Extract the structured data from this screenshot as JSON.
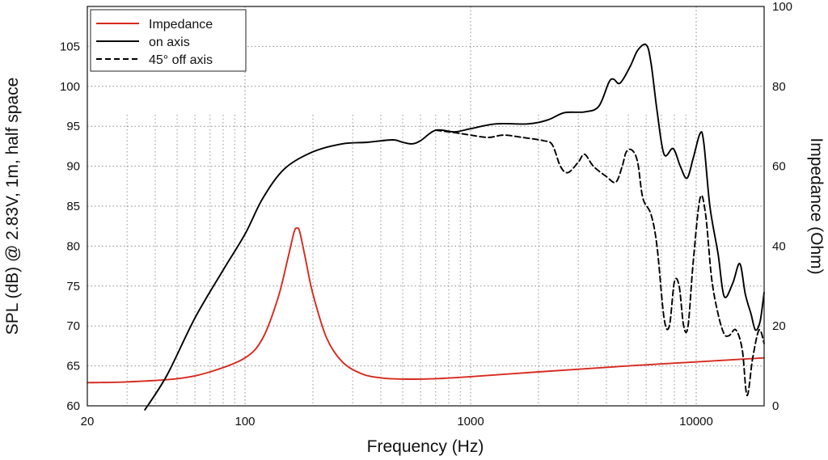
{
  "chart_data": {
    "type": "line",
    "x_scale": "log",
    "xlim": [
      20,
      20000
    ],
    "xlabel": "Frequency (Hz)",
    "ylabel": "SPL (dB) @ 2.83V, 1m, half space",
    "ylabel_right": "Impedance (Ohm)",
    "ylim": [
      60,
      110
    ],
    "ylim_right": [
      0,
      100
    ],
    "x_ticks": [
      {
        "value": 20,
        "label": "20"
      },
      {
        "value": 100,
        "label": "100"
      },
      {
        "value": 1000,
        "label": "1000"
      },
      {
        "value": 10000,
        "label": "10000"
      }
    ],
    "y_ticks": [
      {
        "value": 60,
        "label": "60"
      },
      {
        "value": 65,
        "label": "65"
      },
      {
        "value": 70,
        "label": "70"
      },
      {
        "value": 75,
        "label": "75"
      },
      {
        "value": 80,
        "label": "80"
      },
      {
        "value": 85,
        "label": "85"
      },
      {
        "value": 90,
        "label": "90"
      },
      {
        "value": 95,
        "label": "95"
      },
      {
        "value": 100,
        "label": "100"
      },
      {
        "value": 105,
        "label": "105"
      }
    ],
    "y_ticks_right": [
      {
        "value": 0,
        "label": "0"
      },
      {
        "value": 20,
        "label": "20"
      },
      {
        "value": 40,
        "label": "40"
      },
      {
        "value": 60,
        "label": "60"
      },
      {
        "value": 80,
        "label": "80"
      },
      {
        "value": 100,
        "label": "100"
      }
    ],
    "grid": true,
    "legend_position": "top-left",
    "series": [
      {
        "name": "Impedance",
        "color": "#d62a1f",
        "style": "solid",
        "axis": "right",
        "points": [
          [
            20,
            5.8
          ],
          [
            30,
            6
          ],
          [
            50,
            6.8
          ],
          [
            70,
            8.5
          ],
          [
            100,
            12
          ],
          [
            120,
            17
          ],
          [
            140,
            27
          ],
          [
            155,
            37
          ],
          [
            165,
            43.5
          ],
          [
            170,
            44.5
          ],
          [
            175,
            43.5
          ],
          [
            185,
            37
          ],
          [
            200,
            28
          ],
          [
            230,
            17
          ],
          [
            270,
            11
          ],
          [
            330,
            8
          ],
          [
            400,
            7
          ],
          [
            500,
            6.7
          ],
          [
            700,
            6.8
          ],
          [
            1000,
            7.3
          ],
          [
            2000,
            8.5
          ],
          [
            5000,
            10
          ],
          [
            10000,
            11
          ],
          [
            20000,
            12
          ]
        ]
      },
      {
        "name": "on axis",
        "color": "#000000",
        "style": "solid",
        "axis": "left",
        "points": [
          [
            36,
            59.5
          ],
          [
            45,
            63.8
          ],
          [
            60,
            71
          ],
          [
            80,
            77
          ],
          [
            100,
            81.5
          ],
          [
            120,
            86
          ],
          [
            150,
            89.7
          ],
          [
            200,
            91.8
          ],
          [
            270,
            92.8
          ],
          [
            350,
            93
          ],
          [
            450,
            93.3
          ],
          [
            500,
            93
          ],
          [
            550,
            92.8
          ],
          [
            600,
            93.2
          ],
          [
            700,
            94.5
          ],
          [
            850,
            94.3
          ],
          [
            1000,
            94.7
          ],
          [
            1300,
            95.3
          ],
          [
            1800,
            95.3
          ],
          [
            2200,
            95.8
          ],
          [
            2600,
            96.7
          ],
          [
            3200,
            96.8
          ],
          [
            3700,
            97.5
          ],
          [
            4100,
            100.5
          ],
          [
            4300,
            100.9
          ],
          [
            4600,
            100.4
          ],
          [
            5100,
            102.5
          ],
          [
            5500,
            104.5
          ],
          [
            6000,
            105.2
          ],
          [
            6300,
            103
          ],
          [
            6700,
            97
          ],
          [
            7200,
            91.5
          ],
          [
            7900,
            92.2
          ],
          [
            8500,
            90
          ],
          [
            9100,
            88.5
          ],
          [
            9700,
            91
          ],
          [
            10400,
            94.1
          ],
          [
            10800,
            93
          ],
          [
            11500,
            85
          ],
          [
            12500,
            79
          ],
          [
            13300,
            73.7
          ],
          [
            14500,
            75.3
          ],
          [
            15600,
            77.8
          ],
          [
            16500,
            74
          ],
          [
            17500,
            71.5
          ],
          [
            18300,
            69.5
          ],
          [
            19200,
            70.6
          ],
          [
            20000,
            74.2
          ]
        ]
      },
      {
        "name": "45° off axis",
        "color": "#000000",
        "style": "dashed",
        "axis": "left",
        "points": [
          [
            700,
            94.5
          ],
          [
            850,
            94.2
          ],
          [
            1000,
            93.9
          ],
          [
            1200,
            93.6
          ],
          [
            1400,
            93.9
          ],
          [
            1700,
            93.6
          ],
          [
            2100,
            93.2
          ],
          [
            2300,
            92.7
          ],
          [
            2500,
            90
          ],
          [
            2700,
            89.2
          ],
          [
            3000,
            90.5
          ],
          [
            3200,
            91.5
          ],
          [
            3500,
            90
          ],
          [
            4000,
            88.7
          ],
          [
            4400,
            88
          ],
          [
            4700,
            90
          ],
          [
            4900,
            91.8
          ],
          [
            5200,
            92
          ],
          [
            5500,
            90.5
          ],
          [
            5800,
            86
          ],
          [
            6300,
            84
          ],
          [
            6700,
            80
          ],
          [
            7200,
            71
          ],
          [
            7600,
            70
          ],
          [
            8000,
            75.5
          ],
          [
            8400,
            75
          ],
          [
            8800,
            70
          ],
          [
            9200,
            70
          ],
          [
            9700,
            78
          ],
          [
            10400,
            86
          ],
          [
            11000,
            84
          ],
          [
            11700,
            76
          ],
          [
            12500,
            71.5
          ],
          [
            13300,
            69
          ],
          [
            14000,
            68.8
          ],
          [
            15000,
            69.5
          ],
          [
            16000,
            67
          ],
          [
            16800,
            61.3
          ],
          [
            17800,
            66
          ],
          [
            19000,
            69.5
          ],
          [
            20000,
            67.8
          ]
        ]
      }
    ]
  }
}
